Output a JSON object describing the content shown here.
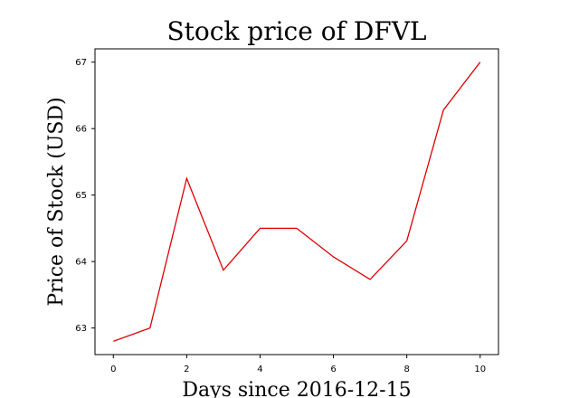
{
  "chart_data": {
    "type": "line",
    "title": "Stock price of DFVL",
    "xlabel": "Days since 2016-12-15",
    "ylabel": "Price of Stock (USD)",
    "x": [
      0,
      1,
      2,
      3,
      4,
      5,
      6,
      7,
      8,
      9,
      10
    ],
    "series": [
      {
        "values": [
          62.8,
          63.0,
          65.25,
          63.87,
          64.5,
          64.5,
          64.07,
          63.73,
          64.31,
          66.28,
          67.0
        ],
        "color": "#dd0000"
      }
    ],
    "xlim": [
      -0.5,
      10.5
    ],
    "ylim": [
      62.6,
      67.2
    ],
    "xticks": [
      0,
      2,
      4,
      6,
      8,
      10
    ],
    "yticks": [
      63,
      64,
      65,
      66,
      67
    ],
    "grid": false
  }
}
